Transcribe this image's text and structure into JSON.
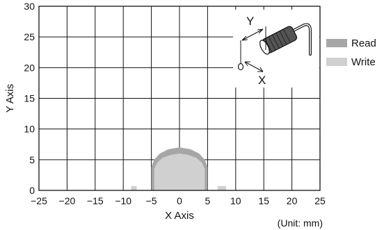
{
  "chart_data": {
    "type": "area",
    "xlabel": "X Axis",
    "ylabel": "Y Axis",
    "unit_note": "(Unit: mm)",
    "xlim": [
      -25,
      25
    ],
    "ylim": [
      0,
      30
    ],
    "x_ticks": [
      -25,
      -20,
      -15,
      -10,
      -5,
      0,
      5,
      10,
      15,
      20,
      25
    ],
    "y_ticks": [
      0,
      5,
      10,
      15,
      20,
      25,
      30
    ],
    "x_tick_labels": [
      "−25",
      "−20",
      "−15",
      "−10",
      "−5",
      "0",
      "5",
      "10",
      "15",
      "20",
      "25"
    ],
    "y_tick_labels": [
      "0",
      "5",
      "10",
      "15",
      "20",
      "25",
      "30"
    ],
    "grid": true,
    "legend_position": "right",
    "series": [
      {
        "name": "Read",
        "color": "#a6a6a6",
        "outline": [
          [
            -5,
            0
          ],
          [
            -5,
            3.8
          ],
          [
            -4.5,
            5
          ],
          [
            -3.5,
            6
          ],
          [
            -2,
            6.7
          ],
          [
            0,
            7
          ],
          [
            2,
            6.7
          ],
          [
            3.5,
            6
          ],
          [
            4.5,
            5
          ],
          [
            5,
            3.8
          ],
          [
            5,
            0
          ]
        ]
      },
      {
        "name": "Write",
        "color": "#d0d0d0",
        "outline": [
          [
            -4.5,
            0
          ],
          [
            -4.5,
            3.5
          ],
          [
            -4,
            4.5
          ],
          [
            -3,
            5.3
          ],
          [
            -1.5,
            5.8
          ],
          [
            0,
            6
          ],
          [
            1.5,
            5.8
          ],
          [
            3,
            5.3
          ],
          [
            4,
            4.5
          ],
          [
            4.5,
            3.5
          ],
          [
            4.5,
            0
          ]
        ],
        "extra_regions": [
          [
            [
              -8.6,
              0
            ],
            [
              -8.6,
              0.7
            ],
            [
              -7.6,
              0.7
            ],
            [
              -7.6,
              0
            ]
          ],
          [
            [
              6.8,
              0
            ],
            [
              6.8,
              0.7
            ],
            [
              8.3,
              0.7
            ],
            [
              8.3,
              0
            ]
          ]
        ]
      }
    ],
    "inset": {
      "labels": [
        "Y",
        "X"
      ]
    }
  }
}
